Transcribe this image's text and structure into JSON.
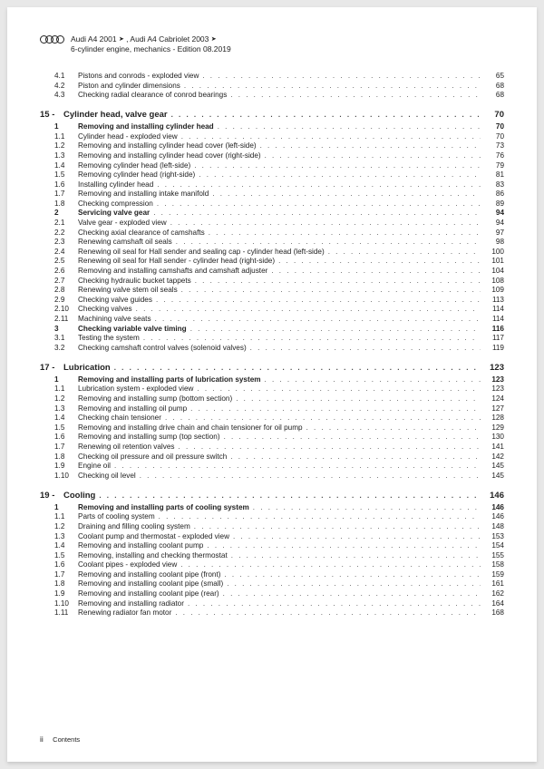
{
  "header": {
    "line1_a": "Audi A4 2001 ",
    "line1_b": " , Audi A4 Cabriolet 2003 ",
    "line2": "6-cylinder engine, mechanics - Edition 08.2019"
  },
  "footer": {
    "pagemark": "ii",
    "label": "Contents"
  },
  "toc": [
    {
      "lvl": "sub",
      "num": "4.1",
      "title": "Pistons and conrods - exploded view",
      "pg": "65"
    },
    {
      "lvl": "sub",
      "num": "4.2",
      "title": "Piston and cylinder dimensions",
      "pg": "68"
    },
    {
      "lvl": "sub",
      "num": "4.3",
      "title": "Checking radial clearance of conrod bearings",
      "pg": "68"
    },
    {
      "lvl": "chap",
      "num": "15 -",
      "title": "Cylinder head, valve gear",
      "pg": "70"
    },
    {
      "lvl": "sec",
      "num": "1",
      "title": "Removing and installing cylinder head",
      "pg": "70"
    },
    {
      "lvl": "sub",
      "num": "1.1",
      "title": "Cylinder head - exploded view",
      "pg": "70"
    },
    {
      "lvl": "sub",
      "num": "1.2",
      "title": "Removing and installing cylinder head cover (left-side)",
      "pg": "73"
    },
    {
      "lvl": "sub",
      "num": "1.3",
      "title": "Removing and installing cylinder head cover (right-side)",
      "pg": "76"
    },
    {
      "lvl": "sub",
      "num": "1.4",
      "title": "Removing cylinder head (left-side)",
      "pg": "79"
    },
    {
      "lvl": "sub",
      "num": "1.5",
      "title": "Removing cylinder head (right-side)",
      "pg": "81"
    },
    {
      "lvl": "sub",
      "num": "1.6",
      "title": "Installing cylinder head",
      "pg": "83"
    },
    {
      "lvl": "sub",
      "num": "1.7",
      "title": "Removing and installing intake manifold",
      "pg": "86"
    },
    {
      "lvl": "sub",
      "num": "1.8",
      "title": "Checking compression",
      "pg": "89"
    },
    {
      "lvl": "sec",
      "num": "2",
      "title": "Servicing valve gear",
      "pg": "94"
    },
    {
      "lvl": "sub",
      "num": "2.1",
      "title": "Valve gear - exploded view",
      "pg": "94"
    },
    {
      "lvl": "sub",
      "num": "2.2",
      "title": "Checking axial clearance of camshafts",
      "pg": "97"
    },
    {
      "lvl": "sub",
      "num": "2.3",
      "title": "Renewing camshaft oil seals",
      "pg": "98"
    },
    {
      "lvl": "sub",
      "num": "2.4",
      "title": "Renewing oil seal for Hall sender and sealing cap - cylinder head (left-side)",
      "pg": "100"
    },
    {
      "lvl": "sub",
      "num": "2.5",
      "title": "Renewing oil seal for Hall sender - cylinder head (right-side)",
      "pg": "101"
    },
    {
      "lvl": "sub",
      "num": "2.6",
      "title": "Removing and installing camshafts and camshaft adjuster",
      "pg": "104"
    },
    {
      "lvl": "sub",
      "num": "2.7",
      "title": "Checking hydraulic bucket tappets",
      "pg": "108"
    },
    {
      "lvl": "sub",
      "num": "2.8",
      "title": "Renewing valve stem oil seals",
      "pg": "109"
    },
    {
      "lvl": "sub",
      "num": "2.9",
      "title": "Checking valve guides",
      "pg": "113"
    },
    {
      "lvl": "sub",
      "num": "2.10",
      "title": "Checking valves",
      "pg": "114"
    },
    {
      "lvl": "sub",
      "num": "2.11",
      "title": "Machining valve seats",
      "pg": "114"
    },
    {
      "lvl": "sec",
      "num": "3",
      "title": "Checking variable valve timing",
      "pg": "116"
    },
    {
      "lvl": "sub",
      "num": "3.1",
      "title": "Testing the system",
      "pg": "117"
    },
    {
      "lvl": "sub",
      "num": "3.2",
      "title": "Checking camshaft control valves (solenoid valves)",
      "pg": "119"
    },
    {
      "lvl": "chap",
      "num": "17 -",
      "title": "Lubrication",
      "pg": "123"
    },
    {
      "lvl": "sec",
      "num": "1",
      "title": "Removing and installing parts of lubrication system",
      "pg": "123"
    },
    {
      "lvl": "sub",
      "num": "1.1",
      "title": "Lubrication system - exploded view",
      "pg": "123"
    },
    {
      "lvl": "sub",
      "num": "1.2",
      "title": "Removing and installing sump (bottom section)",
      "pg": "124"
    },
    {
      "lvl": "sub",
      "num": "1.3",
      "title": "Removing and installing oil pump",
      "pg": "127"
    },
    {
      "lvl": "sub",
      "num": "1.4",
      "title": "Checking chain tensioner",
      "pg": "128"
    },
    {
      "lvl": "sub",
      "num": "1.5",
      "title": "Removing and installing drive chain and chain tensioner for oil pump",
      "pg": "129"
    },
    {
      "lvl": "sub",
      "num": "1.6",
      "title": "Removing and installing sump (top section)",
      "pg": "130"
    },
    {
      "lvl": "sub",
      "num": "1.7",
      "title": "Renewing oil retention valves",
      "pg": "141"
    },
    {
      "lvl": "sub",
      "num": "1.8",
      "title": "Checking oil pressure and oil pressure switch",
      "pg": "142"
    },
    {
      "lvl": "sub",
      "num": "1.9",
      "title": "Engine oil",
      "pg": "145"
    },
    {
      "lvl": "sub",
      "num": "1.10",
      "title": "Checking oil level",
      "pg": "145"
    },
    {
      "lvl": "chap",
      "num": "19 -",
      "title": "Cooling",
      "pg": "146"
    },
    {
      "lvl": "sec",
      "num": "1",
      "title": "Removing and installing parts of cooling system",
      "pg": "146"
    },
    {
      "lvl": "sub",
      "num": "1.1",
      "title": "Parts of cooling system",
      "pg": "146"
    },
    {
      "lvl": "sub",
      "num": "1.2",
      "title": "Draining and filling cooling system",
      "pg": "148"
    },
    {
      "lvl": "sub",
      "num": "1.3",
      "title": "Coolant pump and thermostat - exploded view",
      "pg": "153"
    },
    {
      "lvl": "sub",
      "num": "1.4",
      "title": "Removing and installing coolant pump",
      "pg": "154"
    },
    {
      "lvl": "sub",
      "num": "1.5",
      "title": "Removing, installing and checking thermostat",
      "pg": "155"
    },
    {
      "lvl": "sub",
      "num": "1.6",
      "title": "Coolant pipes - exploded view",
      "pg": "158"
    },
    {
      "lvl": "sub",
      "num": "1.7",
      "title": "Removing and installing coolant pipe (front)",
      "pg": "159"
    },
    {
      "lvl": "sub",
      "num": "1.8",
      "title": "Removing and installing coolant pipe (small)",
      "pg": "161"
    },
    {
      "lvl": "sub",
      "num": "1.9",
      "title": "Removing and installing coolant pipe (rear)",
      "pg": "162"
    },
    {
      "lvl": "sub",
      "num": "1.10",
      "title": "Removing and installing radiator",
      "pg": "164"
    },
    {
      "lvl": "sub",
      "num": "1.11",
      "title": "Renewing radiator fan motor",
      "pg": "168"
    }
  ]
}
